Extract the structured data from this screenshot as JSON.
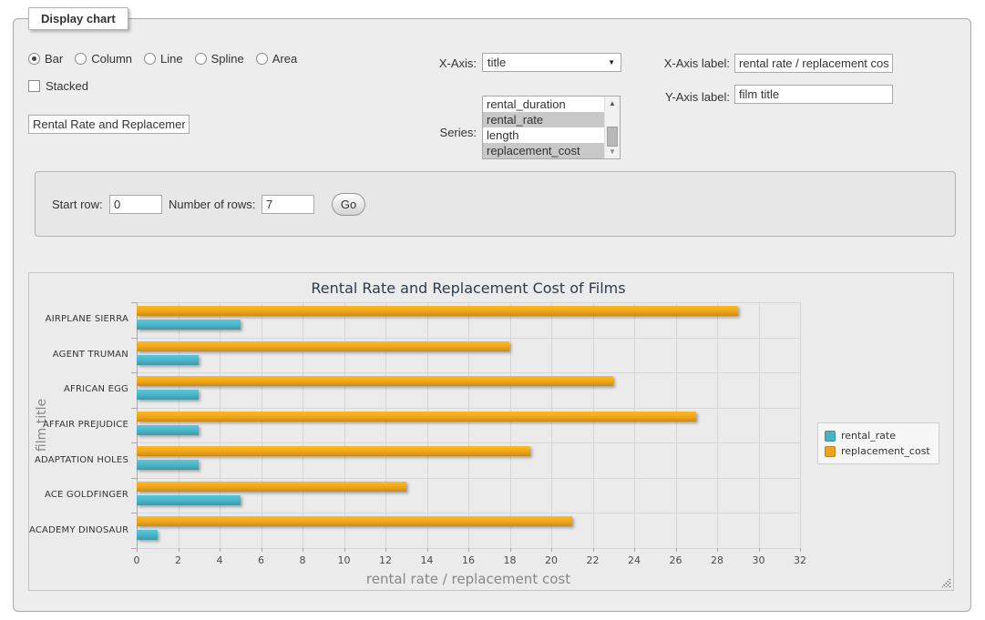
{
  "form": {
    "legend": "Display chart",
    "chart_types": [
      "Bar",
      "Column",
      "Line",
      "Spline",
      "Area"
    ],
    "selected_type": "Bar",
    "stacked_label": "Stacked",
    "stacked_checked": false,
    "title_value": "Rental Rate and Replacement Cost of Films",
    "x_axis_label_text": "X-Axis:",
    "x_axis_selected": "title",
    "series_label_text": "Series:",
    "series_options": [
      {
        "label": "rental_duration",
        "selected": false
      },
      {
        "label": "rental_rate",
        "selected": true
      },
      {
        "label": "length",
        "selected": false
      },
      {
        "label": "replacement_cost",
        "selected": true
      }
    ],
    "x_axis_label_label": "X-Axis label:",
    "x_axis_label_value": "rental rate / replacement cost",
    "y_axis_label_label": "Y-Axis label:",
    "y_axis_label_value": "film title"
  },
  "pagination": {
    "start_row_label": "Start row:",
    "start_row_value": "0",
    "num_rows_label": "Number of rows:",
    "num_rows_value": "7",
    "go_label": "Go"
  },
  "chart_data": {
    "type": "bar",
    "title": "Rental Rate and Replacement Cost of Films",
    "xlabel": "rental rate / replacement cost",
    "ylabel": "film title",
    "categories": [
      "AIRPLANE SIERRA",
      "AGENT TRUMAN",
      "AFRICAN EGG",
      "AFFAIR PREJUDICE",
      "ADAPTATION HOLES",
      "ACE GOLDFINGER",
      "ACADEMY DINOSAUR"
    ],
    "series": [
      {
        "name": "rental_rate",
        "color": "#4cb2c5",
        "values": [
          4.99,
          2.99,
          2.99,
          2.99,
          2.99,
          4.99,
          0.99
        ]
      },
      {
        "name": "replacement_cost",
        "color": "#eea41c",
        "values": [
          28.99,
          17.99,
          22.99,
          26.99,
          18.99,
          12.99,
          20.99
        ]
      }
    ],
    "xlim": [
      0,
      32
    ],
    "xtick_step": 2,
    "grid": true,
    "legend_position": "right"
  }
}
